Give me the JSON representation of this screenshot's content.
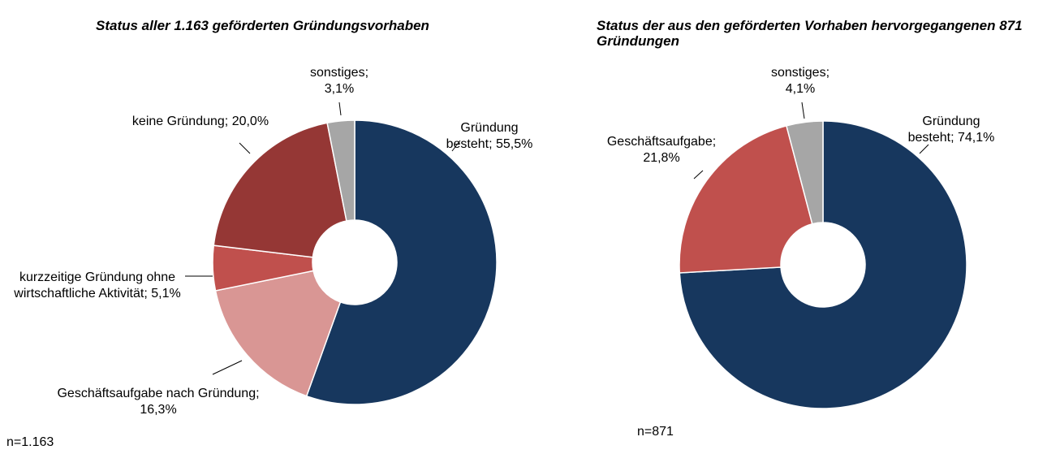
{
  "chart_data": [
    {
      "type": "donut",
      "title": "Status aller 1.163 geförderten Gründungsvorhaben",
      "categories": [
        "Gründung besteht;",
        "Geschäftsaufgabe nach Gründung;",
        "kurzzeitige Gründung ohne wirtschaftliche Aktivität;",
        "keine Gründung;",
        "sonstiges;"
      ],
      "values": [
        55.5,
        16.3,
        5.1,
        20.0,
        3.1
      ],
      "value_labels": [
        "55,5%",
        "16,3%",
        "5,1%",
        "20,0%",
        "3,1%"
      ],
      "colors": [
        "#17375e",
        "#d99694",
        "#c0504d",
        "#953735",
        "#a6a6a6"
      ],
      "note": "n=1.163"
    },
    {
      "type": "donut",
      "title": "Status der aus den geförderten Vorhaben hervorgegangenen 871 Gründungen",
      "categories": [
        "Gründung besteht;",
        "Geschäftsaufgabe;",
        "sonstiges;"
      ],
      "values": [
        74.1,
        21.8,
        4.1
      ],
      "value_labels": [
        "74,1%",
        "21,8%",
        "4,1%"
      ],
      "colors": [
        "#17375e",
        "#c0504d",
        "#a6a6a6"
      ],
      "note": "n=871"
    }
  ]
}
